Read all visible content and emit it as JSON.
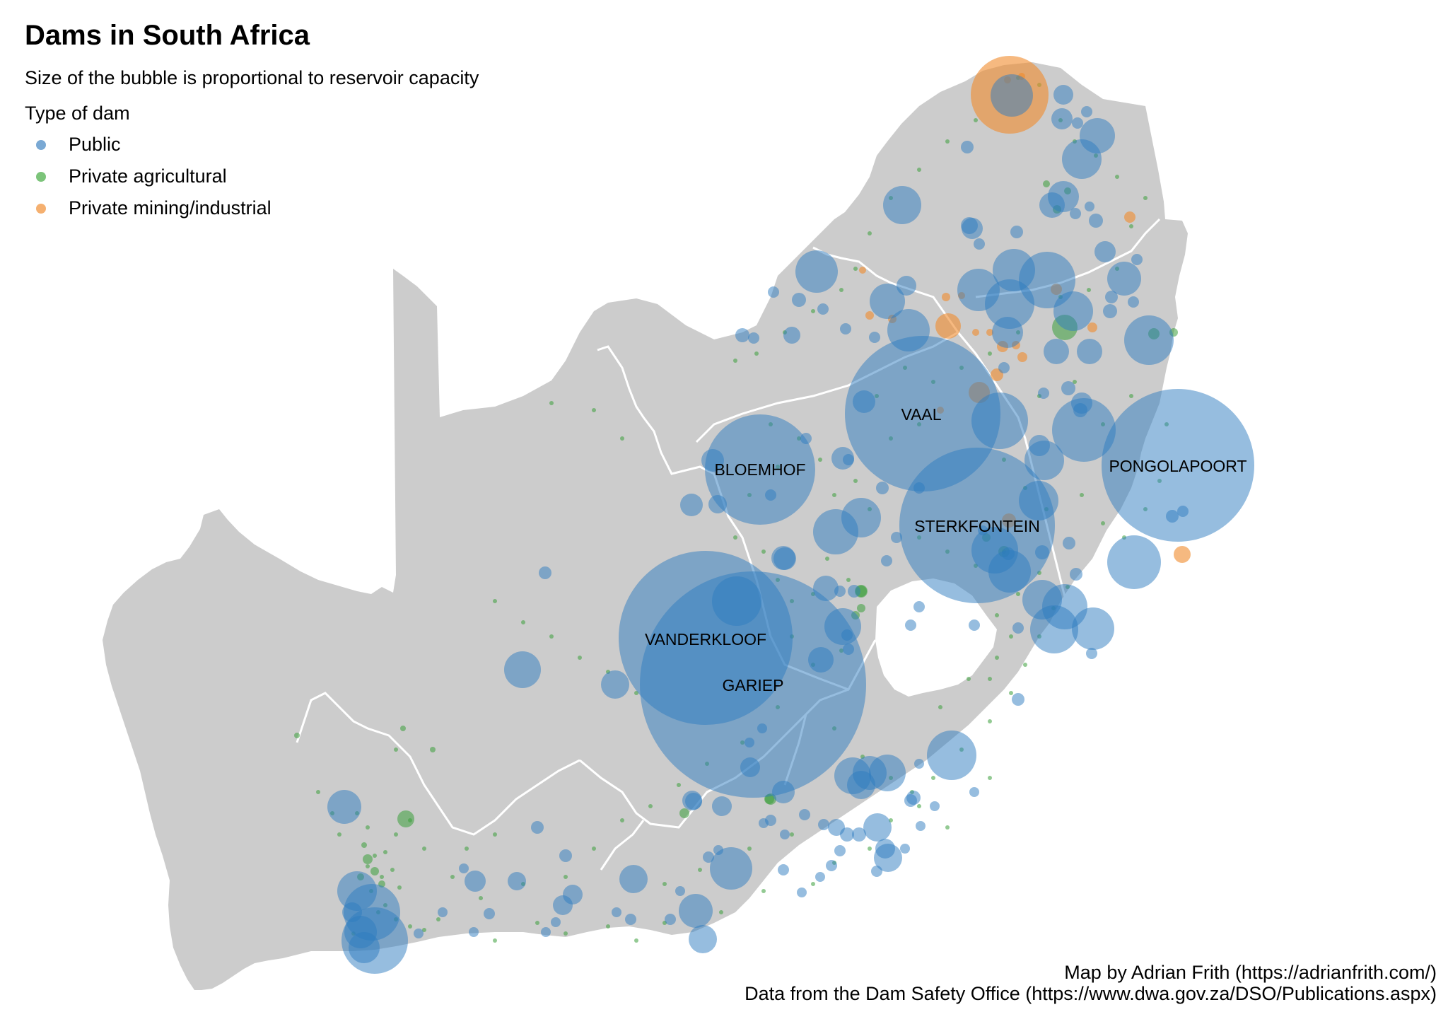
{
  "title": "Dams in South Africa",
  "subtitle": "Size of the bubble is proportional to reservoir capacity",
  "legend": {
    "title": "Type of dam",
    "items": [
      {
        "label": "Public",
        "color": "#5b9bd5"
      },
      {
        "label": "Private agricultural",
        "color": "#6cc06a"
      },
      {
        "label": "Private mining/industrial",
        "color": "#f5a35c"
      }
    ]
  },
  "dam_labels": {
    "vaal": "VAAL",
    "bloemhof": "BLOEMHOF",
    "pongolapoort": "PONGOLAPOORT",
    "sterkfontein": "STERKFONTEIN",
    "vanderkloof": "VANDERKLOOF",
    "gariep": "GARIEP"
  },
  "credits": {
    "line1": "Map by Adrian Frith (https://adrianfrith.com/)",
    "line2": "Data from the Dam Safety Office (https://www.dwa.gov.za/DSO/Publications.aspx)"
  },
  "colors": {
    "land": "#cccccc",
    "border": "#ffffff",
    "public": "#2e7bbf",
    "agricultural": "#3a9e3a",
    "mining": "#f08a2b"
  }
}
